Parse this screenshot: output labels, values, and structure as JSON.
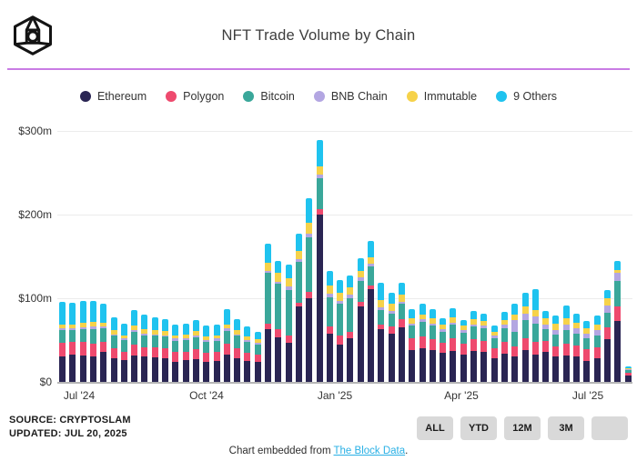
{
  "header": {
    "title": "NFT Trade Volume by Chain",
    "logo": "the-block-logo",
    "divider_color": "#c97ce4"
  },
  "chart_data": {
    "type": "bar",
    "stacked": true,
    "title": "NFT Trade Volume by Chain",
    "unit": "USD millions",
    "ylim": [
      0,
      300
    ],
    "grid": "horizontal",
    "legend_position": "top",
    "y_ticks": [
      {
        "label": "$0",
        "value": 0
      },
      {
        "label": "$100m",
        "value": 100
      },
      {
        "label": "$200m",
        "value": 200
      },
      {
        "label": "$300m",
        "value": 300
      }
    ],
    "x_ticks": [
      {
        "label": "Jul '24",
        "px": 87
      },
      {
        "label": "Oct '24",
        "px": 227
      },
      {
        "label": "Jan '25",
        "px": 368
      },
      {
        "label": "Apr '25",
        "px": 507
      },
      {
        "label": "Jul '25",
        "px": 646
      }
    ],
    "x_description": "weekly bars, Jul 2024 through Jul 20 2025",
    "series": [
      {
        "name": "Ethereum",
        "color": "#2a2553",
        "values": [
          30,
          33,
          31,
          30,
          36,
          28,
          26,
          32,
          30,
          29,
          28,
          24,
          26,
          27,
          24,
          25,
          33,
          28,
          25,
          24,
          63,
          53,
          47,
          90,
          100,
          200,
          58,
          45,
          52,
          90,
          111,
          63,
          58,
          65,
          38,
          40,
          38,
          35,
          37,
          33,
          37,
          36,
          28,
          34,
          30,
          38,
          33,
          36,
          30,
          32,
          30,
          25,
          28,
          51,
          73,
          8
        ]
      },
      {
        "name": "Polygon",
        "color": "#ee4a6e",
        "values": [
          17,
          15,
          17,
          16,
          12,
          12,
          10,
          13,
          11,
          12,
          12,
          12,
          10,
          12,
          11,
          11,
          13,
          12,
          10,
          9,
          7,
          10,
          8,
          5,
          8,
          6,
          8,
          10,
          8,
          6,
          4,
          6,
          8,
          10,
          14,
          14,
          13,
          12,
          15,
          13,
          14,
          13,
          12,
          14,
          12,
          14,
          15,
          13,
          12,
          14,
          13,
          14,
          13,
          14,
          17,
          3
        ]
      },
      {
        "name": "Bitcoin",
        "color": "#3aa79a",
        "values": [
          15,
          14,
          15,
          17,
          16,
          15,
          14,
          15,
          14,
          14,
          14,
          13,
          14,
          14,
          13,
          13,
          15,
          15,
          13,
          12,
          60,
          54,
          55,
          49,
          65,
          38,
          35,
          38,
          40,
          25,
          23,
          17,
          16,
          18,
          15,
          18,
          16,
          13,
          16,
          13,
          15,
          15,
          12,
          16,
          18,
          22,
          22,
          14,
          14,
          16,
          15,
          13,
          14,
          18,
          31,
          3
        ]
      },
      {
        "name": "BNB Chain",
        "color": "#b3a6e2",
        "values": [
          2,
          2,
          2,
          3,
          2,
          2,
          2,
          2,
          3,
          2,
          2,
          3,
          2,
          3,
          2,
          3,
          3,
          2,
          2,
          2,
          3,
          3,
          4,
          3,
          4,
          4,
          4,
          4,
          4,
          4,
          3,
          3,
          3,
          3,
          3,
          3,
          3,
          3,
          3,
          3,
          3,
          3,
          3,
          4,
          14,
          8,
          8,
          6,
          6,
          6,
          6,
          6,
          7,
          8,
          10,
          1
        ]
      },
      {
        "name": "Immutable",
        "color": "#f6d24a",
        "values": [
          5,
          5,
          6,
          6,
          5,
          5,
          4,
          5,
          5,
          5,
          5,
          4,
          5,
          5,
          4,
          4,
          5,
          5,
          4,
          4,
          9,
          10,
          10,
          10,
          13,
          10,
          10,
          10,
          9,
          8,
          8,
          9,
          8,
          8,
          6,
          6,
          6,
          5,
          6,
          5,
          6,
          6,
          5,
          6,
          7,
          8,
          8,
          7,
          8,
          8,
          7,
          6,
          7,
          9,
          3,
          1
        ]
      },
      {
        "name": "9 Others",
        "color": "#1fc3ef",
        "values": [
          27,
          26,
          26,
          25,
          22,
          15,
          14,
          19,
          17,
          15,
          14,
          13,
          13,
          13,
          13,
          13,
          18,
          13,
          12,
          9,
          23,
          15,
          16,
          20,
          30,
          31,
          18,
          15,
          14,
          15,
          19,
          20,
          14,
          14,
          11,
          13,
          11,
          8,
          11,
          7,
          10,
          9,
          7,
          10,
          13,
          17,
          25,
          9,
          9,
          15,
          11,
          9,
          10,
          10,
          11,
          2
        ]
      }
    ]
  },
  "source": {
    "line1": "SOURCE: CRYPTOSLAM",
    "line2": "UPDATED: JUL 20, 2025"
  },
  "toolbar": {
    "buttons": [
      "ALL",
      "YTD",
      "12M",
      "3M",
      ""
    ]
  },
  "footer": {
    "prefix": "Chart embedded from ",
    "link": "The Block Data",
    "suffix": "."
  }
}
